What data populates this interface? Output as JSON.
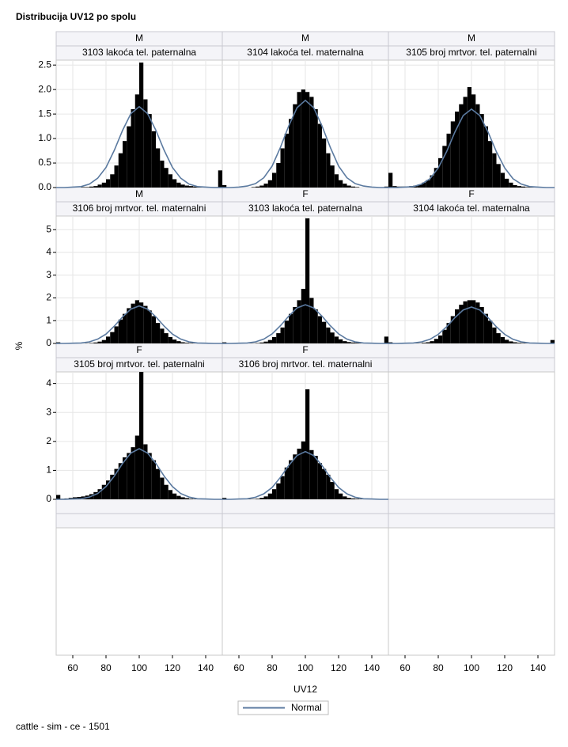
{
  "chart_data": {
    "type": "histogram",
    "title": "Distribucija UV12 po spolu",
    "x_label": "UV12",
    "y_label": "%",
    "footnote": "cattle - sim - ce - 1501",
    "legend": "Normal",
    "bar_color": "#000000",
    "curve_color": "#5b7aa0",
    "grid": true,
    "xlim": [
      50,
      150
    ],
    "xticks": [
      60,
      80,
      100,
      120,
      140
    ],
    "bins": [
      50,
      52.5,
      55,
      57.5,
      60,
      62.5,
      65,
      67.5,
      70,
      72.5,
      75,
      77.5,
      80,
      82.5,
      85,
      87.5,
      90,
      92.5,
      95,
      97.5,
      100,
      102.5,
      105,
      107.5,
      110,
      112.5,
      115,
      117.5,
      120,
      122.5,
      125,
      127.5,
      130,
      132.5,
      135,
      137.5,
      140,
      142.5,
      145,
      147.5,
      150
    ],
    "normal_x": [
      50,
      55,
      60,
      65,
      70,
      75,
      80,
      85,
      90,
      95,
      100,
      105,
      110,
      115,
      120,
      125,
      130,
      135,
      140,
      145,
      150
    ],
    "rows": [
      {
        "ylim": [
          0,
          2.6
        ],
        "yticks": [
          {
            "value": 0,
            "label": "0.0"
          },
          0.5,
          {
            "value": 1,
            "label": "1.0"
          },
          1.5,
          {
            "value": 2,
            "label": "2.0"
          },
          2.5
        ]
      },
      {
        "ylim": [
          0,
          5.6
        ],
        "yticks": [
          0,
          1,
          2,
          3,
          4,
          5
        ]
      },
      {
        "ylim": [
          0,
          4.4
        ],
        "yticks": [
          0,
          1,
          2,
          3,
          4
        ]
      }
    ],
    "panels": [
      {
        "group": "M",
        "label": "3103 lakoća tel. paternalna",
        "values": [
          0,
          0,
          0,
          0,
          0,
          0,
          0.01,
          0.01,
          0.02,
          0.03,
          0.06,
          0.1,
          0.17,
          0.27,
          0.45,
          0.7,
          0.95,
          1.25,
          1.6,
          1.9,
          2.55,
          1.8,
          1.5,
          1.15,
          0.8,
          0.55,
          0.4,
          0.27,
          0.17,
          0.1,
          0.06,
          0.04,
          0.03,
          0.02,
          0.02,
          0.01,
          0.01,
          0.01,
          0.01,
          0.35
        ],
        "normal": [
          0,
          0,
          0.01,
          0.02,
          0.07,
          0.19,
          0.41,
          0.76,
          1.17,
          1.51,
          1.65,
          1.51,
          1.17,
          0.76,
          0.41,
          0.19,
          0.07,
          0.02,
          0.01,
          0,
          0
        ]
      },
      {
        "group": "M",
        "label": "3104 lakoća tel. maternalna",
        "values": [
          0.05,
          0,
          0,
          0,
          0,
          0,
          0,
          0.01,
          0.02,
          0.04,
          0.08,
          0.15,
          0.3,
          0.5,
          0.8,
          1.1,
          1.4,
          1.7,
          1.95,
          2.0,
          1.95,
          1.85,
          1.6,
          1.3,
          1.0,
          0.7,
          0.45,
          0.27,
          0.15,
          0.08,
          0.04,
          0.02,
          0.01,
          0,
          0,
          0,
          0,
          0,
          0,
          0.02
        ],
        "normal": [
          0,
          0,
          0.01,
          0.03,
          0.08,
          0.2,
          0.44,
          0.82,
          1.26,
          1.63,
          1.78,
          1.63,
          1.26,
          0.82,
          0.44,
          0.2,
          0.08,
          0.03,
          0.01,
          0,
          0
        ]
      },
      {
        "group": "M",
        "label": "3105 broj mrtvor. tel. paternalni",
        "values": [
          0.3,
          0.03,
          0.02,
          0.02,
          0.02,
          0.03,
          0.04,
          0.06,
          0.1,
          0.15,
          0.25,
          0.4,
          0.6,
          0.85,
          1.1,
          1.35,
          1.55,
          1.7,
          1.85,
          2.05,
          1.9,
          1.7,
          1.5,
          1.25,
          0.95,
          0.7,
          0.48,
          0.3,
          0.18,
          0.1,
          0.05,
          0.03,
          0.02,
          0.01,
          0.01,
          0.01,
          0,
          0,
          0,
          0
        ],
        "normal": [
          0,
          0,
          0.01,
          0.02,
          0.07,
          0.18,
          0.4,
          0.73,
          1.13,
          1.47,
          1.6,
          1.47,
          1.13,
          0.73,
          0.4,
          0.18,
          0.07,
          0.02,
          0.01,
          0,
          0
        ]
      },
      {
        "group": "M",
        "label": "3106 broj mrtvor. tel. maternalni",
        "values": [
          0.05,
          0,
          0,
          0,
          0,
          0,
          0,
          0.01,
          0.02,
          0.04,
          0.08,
          0.15,
          0.3,
          0.5,
          0.75,
          1.05,
          1.3,
          1.55,
          1.75,
          1.9,
          1.8,
          1.65,
          1.45,
          1.2,
          0.9,
          0.65,
          0.45,
          0.28,
          0.17,
          0.1,
          0.05,
          0.03,
          0.02,
          0.01,
          0,
          0,
          0,
          0,
          0,
          0
        ],
        "normal": [
          0,
          0,
          0.01,
          0.02,
          0.07,
          0.19,
          0.41,
          0.76,
          1.17,
          1.51,
          1.65,
          1.51,
          1.17,
          0.76,
          0.41,
          0.19,
          0.07,
          0.02,
          0.01,
          0,
          0
        ]
      },
      {
        "group": "F",
        "label": "3103 lakoća tel. paternalna",
        "values": [
          0.05,
          0,
          0,
          0,
          0,
          0,
          0.01,
          0.01,
          0.02,
          0.04,
          0.08,
          0.15,
          0.28,
          0.45,
          0.7,
          1.0,
          1.3,
          1.6,
          1.9,
          2.4,
          5.5,
          2.0,
          1.5,
          1.2,
          0.95,
          0.7,
          0.48,
          0.3,
          0.18,
          0.1,
          0.06,
          0.04,
          0.03,
          0.02,
          0.02,
          0.02,
          0.01,
          0.01,
          0.01,
          0.3
        ],
        "normal": [
          0,
          0,
          0.01,
          0.02,
          0.07,
          0.19,
          0.42,
          0.78,
          1.2,
          1.56,
          1.7,
          1.56,
          1.2,
          0.78,
          0.42,
          0.19,
          0.07,
          0.02,
          0.01,
          0,
          0
        ]
      },
      {
        "group": "F",
        "label": "3104 lakoća tel. maternalna",
        "values": [
          0.05,
          0,
          0,
          0,
          0,
          0,
          0.01,
          0.01,
          0.03,
          0.05,
          0.1,
          0.2,
          0.35,
          0.6,
          0.9,
          1.2,
          1.5,
          1.7,
          1.85,
          1.9,
          1.9,
          1.8,
          1.6,
          1.3,
          1.0,
          0.7,
          0.45,
          0.28,
          0.16,
          0.09,
          0.05,
          0.03,
          0.02,
          0.01,
          0.01,
          0,
          0,
          0,
          0,
          0.15
        ],
        "normal": [
          0,
          0,
          0.01,
          0.02,
          0.07,
          0.18,
          0.4,
          0.73,
          1.13,
          1.47,
          1.6,
          1.47,
          1.13,
          0.73,
          0.4,
          0.18,
          0.07,
          0.02,
          0.01,
          0,
          0
        ]
      },
      {
        "group": "F",
        "label": "3105 broj mrtvor. tel. paternalni",
        "values": [
          0.15,
          0.02,
          0.03,
          0.05,
          0.07,
          0.08,
          0.1,
          0.13,
          0.18,
          0.25,
          0.35,
          0.5,
          0.65,
          0.85,
          1.05,
          1.25,
          1.45,
          1.6,
          1.8,
          2.2,
          4.4,
          1.9,
          1.6,
          1.35,
          1.05,
          0.75,
          0.5,
          0.32,
          0.2,
          0.12,
          0.07,
          0.04,
          0.02,
          0.01,
          0.01,
          0,
          0,
          0,
          0,
          0
        ],
        "normal": [
          0,
          0,
          0.01,
          0.02,
          0.08,
          0.2,
          0.44,
          0.8,
          1.24,
          1.6,
          1.75,
          1.6,
          1.24,
          0.8,
          0.44,
          0.2,
          0.08,
          0.02,
          0.01,
          0,
          0
        ]
      },
      {
        "group": "F",
        "label": "3106 broj mrtvor. tel. maternalni",
        "values": [
          0.05,
          0,
          0,
          0,
          0,
          0,
          0.01,
          0.01,
          0.02,
          0.05,
          0.1,
          0.2,
          0.35,
          0.55,
          0.8,
          1.1,
          1.35,
          1.55,
          1.75,
          2.0,
          3.8,
          1.7,
          1.5,
          1.25,
          1.05,
          0.85,
          0.6,
          0.35,
          0.2,
          0.1,
          0.05,
          0.03,
          0.02,
          0.01,
          0,
          0,
          0,
          0,
          0,
          0
        ],
        "normal": [
          0,
          0,
          0.01,
          0.02,
          0.07,
          0.19,
          0.41,
          0.76,
          1.17,
          1.51,
          1.65,
          1.51,
          1.17,
          0.76,
          0.41,
          0.19,
          0.07,
          0.02,
          0.01,
          0,
          0
        ]
      }
    ]
  }
}
